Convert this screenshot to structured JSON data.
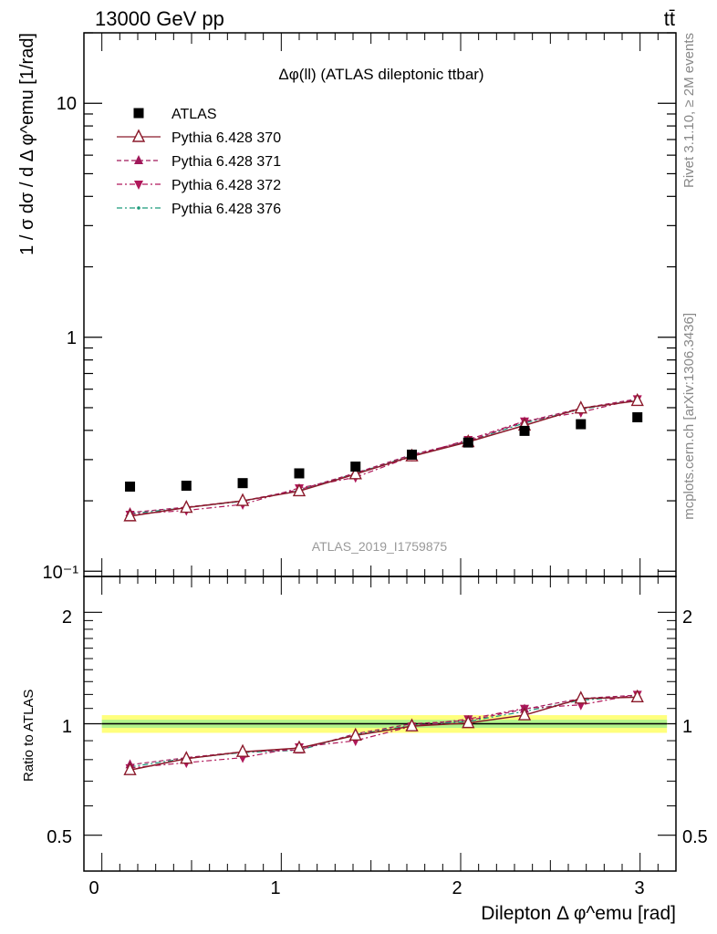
{
  "header": {
    "left": "13000 GeV pp",
    "right": "tt̄"
  },
  "side": {
    "rivet": "Rivet 3.1.10, ≥ 2M events",
    "mcplots": "mcplots.cern.ch [arXiv:1306.3436]"
  },
  "colors": {
    "data": "#000000",
    "p370": "#8b1a2b",
    "p371": "#a0185a",
    "p372": "#b0185a",
    "p376": "#1a9a7a",
    "band_inner": "#90ee90",
    "band_outer": "#ffff66"
  },
  "chart_data": [
    {
      "type": "scatter",
      "panel": "main",
      "title": "Δφ(ll) (ATLAS dileptonic ttbar)",
      "watermark": "ATLAS_2019_I1759875",
      "ylabel": "1 / σ  dσ / d Δ φ^emu [1/rad]",
      "yscale": "log",
      "ylim": [
        0.095,
        20
      ],
      "xlim": [
        -0.1,
        3.2
      ],
      "yticks": [
        "10⁻¹",
        "1",
        "10"
      ],
      "legend_position": "top-left",
      "x": [
        0.157,
        0.471,
        0.785,
        1.1,
        1.414,
        1.728,
        2.042,
        2.356,
        2.67,
        2.985
      ],
      "series": [
        {
          "name": "ATLAS",
          "marker": "square",
          "values": [
            0.23,
            0.232,
            0.238,
            0.262,
            0.28,
            0.315,
            0.355,
            0.398,
            0.425,
            0.455
          ]
        },
        {
          "name": "Pythia 6.428 370",
          "marker": "open-triangle-up",
          "style": "solid",
          "values": [
            0.172,
            0.187,
            0.2,
            0.22,
            0.26,
            0.31,
            0.357,
            0.42,
            0.497,
            0.535
          ]
        },
        {
          "name": "Pythia 6.428 371",
          "marker": "triangle-up",
          "style": "dashed",
          "values": [
            0.178,
            0.188,
            0.2,
            0.223,
            0.263,
            0.315,
            0.36,
            0.435,
            0.497,
            0.545
          ]
        },
        {
          "name": "Pythia 6.428 372",
          "marker": "triangle-down",
          "style": "dashdot",
          "values": [
            0.175,
            0.182,
            0.193,
            0.227,
            0.252,
            0.31,
            0.365,
            0.438,
            0.478,
            0.545
          ]
        },
        {
          "name": "Pythia 6.428 376",
          "marker": "dot",
          "style": "dashdot",
          "values": [
            0.176,
            0.187,
            0.199,
            0.222,
            0.262,
            0.312,
            0.36,
            0.43,
            0.492,
            0.54
          ]
        }
      ]
    },
    {
      "type": "line",
      "panel": "ratio",
      "ylabel": "Ratio to ATLAS",
      "xlabel": "Dilepton Δ φ^emu [rad]",
      "ylim": [
        0.4,
        2.5
      ],
      "yticks": [
        "0.5",
        "1",
        "2"
      ],
      "xticks": [
        "0",
        "1",
        "2",
        "3"
      ],
      "x": [
        0.157,
        0.471,
        0.785,
        1.1,
        1.414,
        1.728,
        2.042,
        2.356,
        2.67,
        2.985
      ],
      "series": [
        {
          "name": "Pythia 6.428 370",
          "values": [
            0.75,
            0.805,
            0.84,
            0.86,
            0.93,
            0.985,
            1.005,
            1.055,
            1.17,
            1.18
          ]
        },
        {
          "name": "Pythia 6.428 371",
          "values": [
            0.775,
            0.81,
            0.84,
            0.85,
            0.94,
            1.0,
            1.02,
            1.095,
            1.17,
            1.195
          ]
        },
        {
          "name": "Pythia 6.428 372",
          "values": [
            0.76,
            0.785,
            0.81,
            0.865,
            0.9,
            0.985,
            1.03,
            1.1,
            1.125,
            1.2
          ]
        },
        {
          "name": "Pythia 6.428 376",
          "values": [
            0.765,
            0.806,
            0.836,
            0.848,
            0.936,
            0.99,
            1.015,
            1.08,
            1.158,
            1.187
          ]
        }
      ]
    }
  ]
}
